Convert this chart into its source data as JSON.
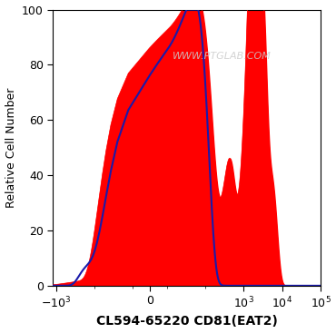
{
  "title": "",
  "xlabel": "CL594-65220 CD81(EAT2)",
  "ylabel": "Relative Cell Number",
  "watermark": "WWW.PTGLAB.COM",
  "xlim_left": -1200,
  "xlim_right": 100000,
  "ylim": [
    0,
    100
  ],
  "yticks": [
    0,
    20,
    40,
    60,
    80,
    100
  ],
  "red_color": "#FF0000",
  "blue_color": "#1a1aaa",
  "background_color": "#ffffff",
  "xlabel_fontsize": 10,
  "ylabel_fontsize": 9,
  "tick_fontsize": 9,
  "linthresh": 10,
  "linscale": 0.4
}
